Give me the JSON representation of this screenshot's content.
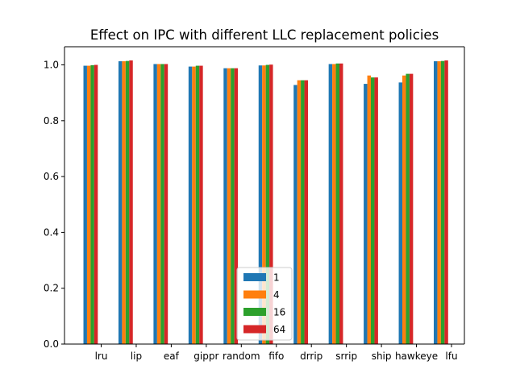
{
  "chart_data": {
    "type": "bar",
    "title": "Effect on IPC with different LLC replacement policies",
    "xlabel": "",
    "ylabel": "",
    "ylim": [
      0,
      1.065
    ],
    "yticks": [
      0.0,
      0.2,
      0.4,
      0.6,
      0.8,
      1.0
    ],
    "ytick_labels": [
      "0.0",
      "0.2",
      "0.4",
      "0.6",
      "0.8",
      "1.0"
    ],
    "categories": [
      "lru",
      "lip",
      "eaf",
      "gippr",
      "random",
      "fifo",
      "drrip",
      "srrip",
      "ship",
      "hawkeye",
      "lfu"
    ],
    "series": [
      {
        "name": "1",
        "color": "#1f77b4",
        "values": [
          0.997,
          1.013,
          1.003,
          0.994,
          0.988,
          0.998,
          0.928,
          1.003,
          0.932,
          0.937,
          1.013
        ]
      },
      {
        "name": "4",
        "color": "#ff7f0e",
        "values": [
          0.997,
          1.013,
          1.003,
          0.994,
          0.988,
          0.998,
          0.945,
          1.003,
          0.962,
          0.962,
          1.013
        ]
      },
      {
        "name": "16",
        "color": "#2ca02c",
        "values": [
          0.999,
          1.014,
          1.003,
          0.997,
          0.988,
          1.0,
          0.945,
          1.005,
          0.955,
          0.968,
          1.014
        ]
      },
      {
        "name": "64",
        "color": "#d62728",
        "values": [
          1.0,
          1.016,
          1.003,
          0.997,
          0.988,
          1.001,
          0.945,
          1.005,
          0.955,
          0.968,
          1.016
        ]
      }
    ],
    "legend": {
      "placement": "lower center"
    },
    "grid": false
  }
}
